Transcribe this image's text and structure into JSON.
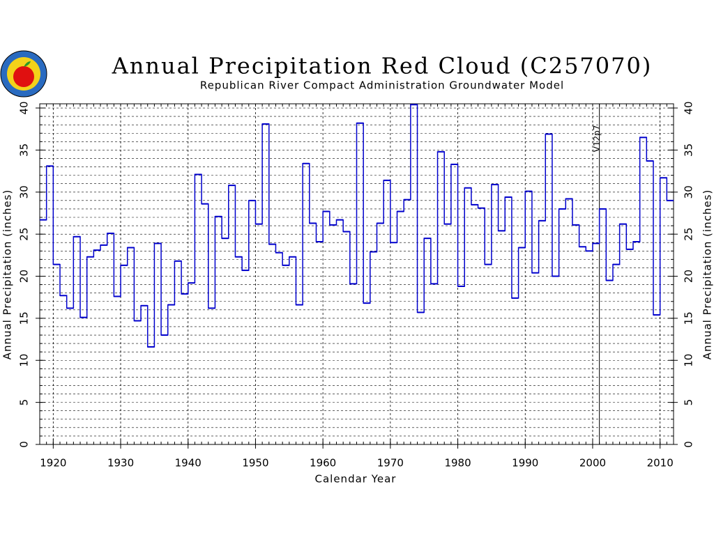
{
  "chart_data": {
    "type": "step",
    "title": "Annual Precipitation Red Cloud (C257070)",
    "subtitle": "Republican River Compact Administration Groundwater Model",
    "xlabel": "Calendar Year",
    "ylabel": "Annual Precipitation (inches)",
    "y2label": "Annual Precipitation (inches)",
    "xlim": [
      1918,
      2012
    ],
    "ylim": [
      0,
      40.5
    ],
    "xticks": [
      1920,
      1930,
      1940,
      1950,
      1960,
      1970,
      1980,
      1990,
      2000,
      2010
    ],
    "yticks": [
      0,
      5,
      10,
      15,
      20,
      25,
      30,
      35,
      40
    ],
    "minor_tick_step": 1,
    "grid": true,
    "color": "#0000cc",
    "annotation": {
      "x": 2001,
      "label": "V12p7"
    },
    "x": [
      1918,
      1919,
      1920,
      1921,
      1922,
      1923,
      1924,
      1925,
      1926,
      1927,
      1928,
      1929,
      1930,
      1931,
      1932,
      1933,
      1934,
      1935,
      1936,
      1937,
      1938,
      1939,
      1940,
      1941,
      1942,
      1943,
      1944,
      1945,
      1946,
      1947,
      1948,
      1949,
      1950,
      1951,
      1952,
      1953,
      1954,
      1955,
      1956,
      1957,
      1958,
      1959,
      1960,
      1961,
      1962,
      1963,
      1964,
      1965,
      1966,
      1967,
      1968,
      1969,
      1970,
      1971,
      1972,
      1973,
      1974,
      1975,
      1976,
      1977,
      1978,
      1979,
      1980,
      1981,
      1982,
      1983,
      1984,
      1985,
      1986,
      1987,
      1988,
      1989,
      1990,
      1991,
      1992,
      1993,
      1994,
      1995,
      1996,
      1997,
      1998,
      1999,
      2000,
      2001,
      2002,
      2003,
      2004,
      2005,
      2006,
      2007,
      2008,
      2009,
      2010,
      2011
    ],
    "values": [
      26.7,
      33.1,
      21.4,
      17.7,
      16.2,
      24.7,
      15.1,
      22.3,
      23.1,
      23.7,
      25.1,
      17.6,
      21.3,
      23.4,
      14.7,
      16.5,
      11.6,
      23.9,
      13.0,
      16.6,
      21.8,
      17.9,
      19.2,
      32.1,
      28.6,
      16.2,
      27.1,
      24.5,
      30.8,
      22.3,
      20.7,
      29.0,
      26.2,
      38.1,
      23.8,
      22.8,
      21.3,
      22.3,
      16.6,
      33.4,
      26.3,
      24.1,
      27.7,
      26.1,
      26.7,
      25.3,
      19.1,
      38.2,
      16.8,
      22.9,
      26.3,
      31.4,
      24.0,
      27.7,
      29.1,
      40.4,
      15.7,
      24.5,
      19.1,
      34.8,
      26.2,
      33.3,
      18.8,
      30.5,
      28.5,
      28.1,
      21.4,
      30.9,
      25.4,
      29.4,
      17.4,
      23.4,
      30.1,
      20.4,
      26.6,
      36.9,
      20.0,
      28.0,
      29.2,
      26.1,
      23.5,
      23.0,
      23.9,
      28.0,
      19.5,
      21.4,
      26.2,
      23.2,
      24.1,
      36.5,
      33.7,
      15.4,
      31.7,
      29.0
    ]
  }
}
